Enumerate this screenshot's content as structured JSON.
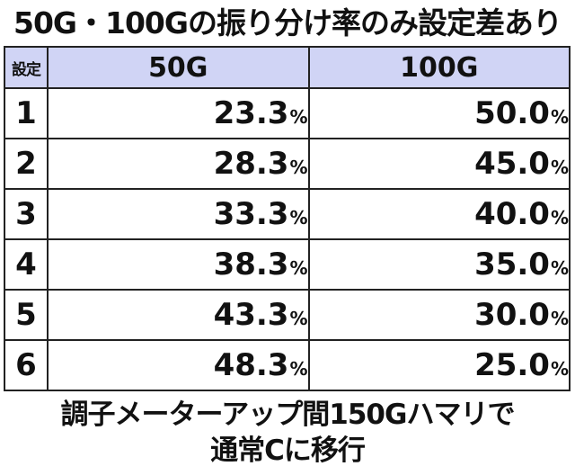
{
  "title": "50G・100Gの振り分け率のみ設定差あり",
  "table": {
    "headers": {
      "setting": "設定",
      "col1": "50G",
      "col2": "100G"
    },
    "unit": "%",
    "rows": [
      {
        "setting": "1",
        "col1": "23.3",
        "col2": "50.0"
      },
      {
        "setting": "2",
        "col1": "28.3",
        "col2": "45.0"
      },
      {
        "setting": "3",
        "col1": "33.3",
        "col2": "40.0"
      },
      {
        "setting": "4",
        "col1": "38.3",
        "col2": "35.0"
      },
      {
        "setting": "5",
        "col1": "43.3",
        "col2": "30.0"
      },
      {
        "setting": "6",
        "col1": "48.3",
        "col2": "25.0"
      }
    ]
  },
  "footer": {
    "line1": "調子メーターアップ間150Gハマリで",
    "line2": "通常Cに移行"
  },
  "colors": {
    "header_bg": "#d0d4f5",
    "border": "#222222",
    "text": "#111111"
  }
}
